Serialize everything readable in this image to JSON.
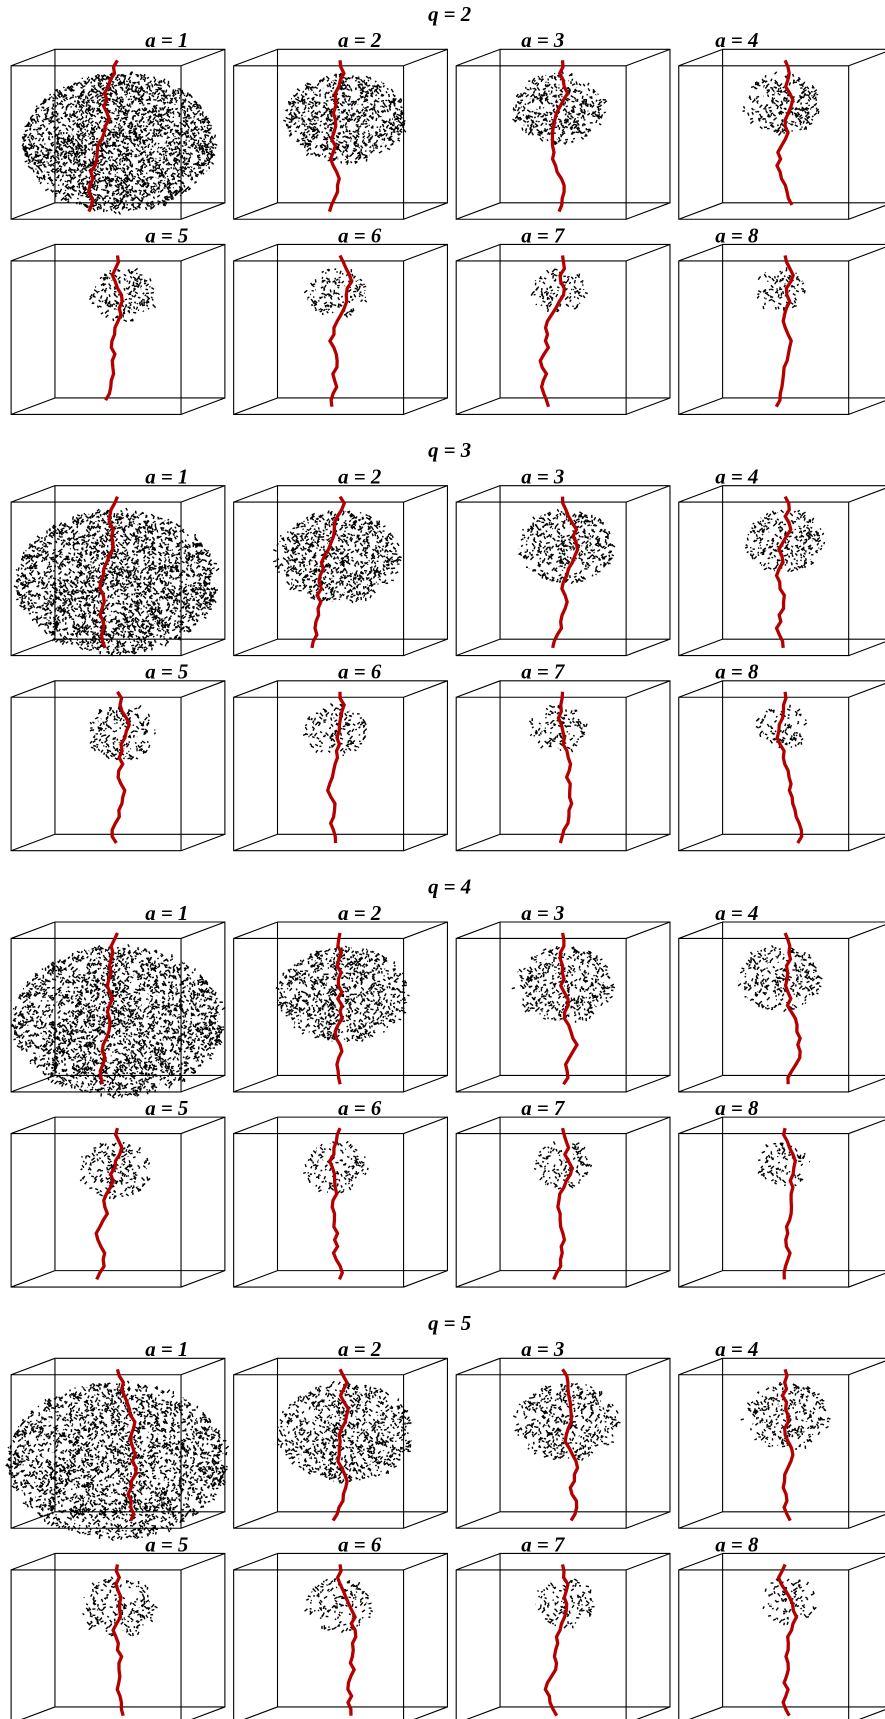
{
  "figure": {
    "groups": [
      {
        "title": "q = 2",
        "panels": [
          "a = 1",
          "a = 2",
          "a = 3",
          "a = 4",
          "a = 5",
          "a = 6",
          "a = 7",
          "a = 8"
        ]
      },
      {
        "title": "q = 3",
        "panels": [
          "a = 1",
          "a = 2",
          "a = 3",
          "a = 4",
          "a = 5",
          "a = 6",
          "a = 7",
          "a = 8"
        ]
      },
      {
        "title": "q = 4",
        "panels": [
          "a = 1",
          "a = 2",
          "a = 3",
          "a = 4",
          "a = 5",
          "a = 6",
          "a = 7",
          "a = 8"
        ]
      },
      {
        "title": "q = 5",
        "panels": [
          "a = 1",
          "a = 2",
          "a = 3",
          "a = 4",
          "a = 5",
          "a = 6",
          "a = 7",
          "a = 8"
        ]
      }
    ]
  }
}
